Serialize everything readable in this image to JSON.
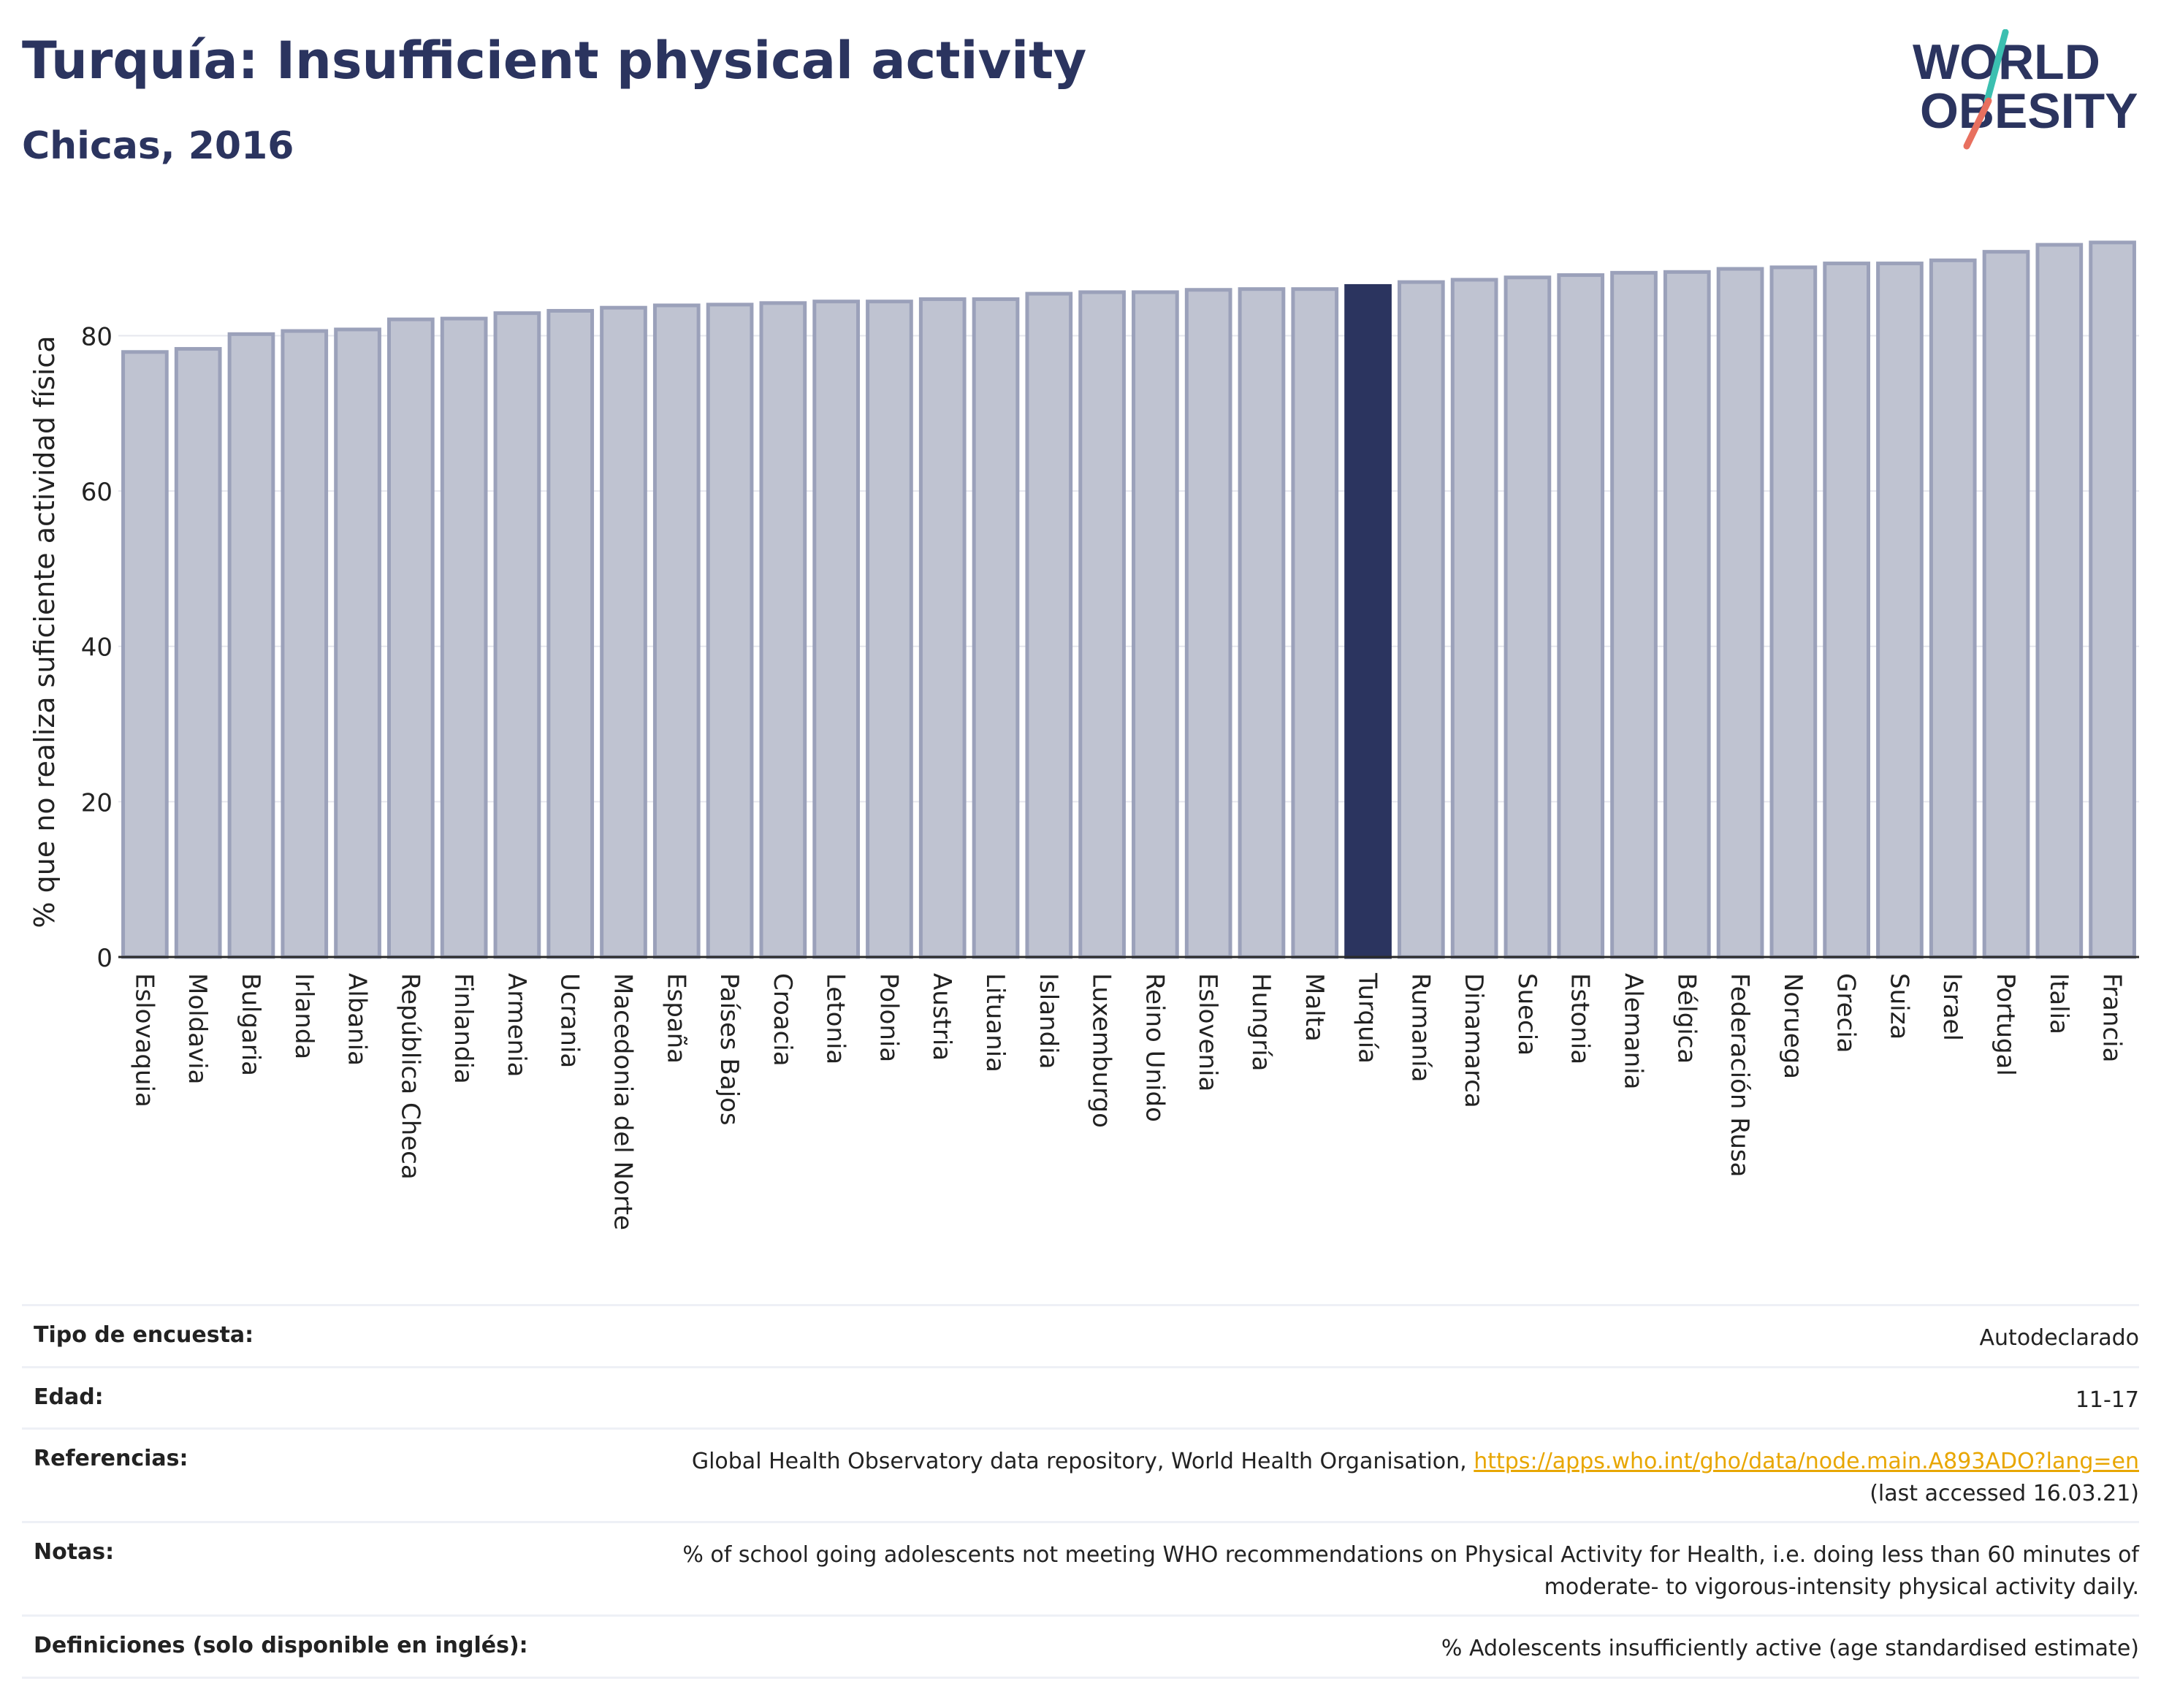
{
  "header": {
    "title": "Turquía: Insufficient physical activity",
    "subtitle": "Chicas, 2016"
  },
  "logo": {
    "line1": "WORLD",
    "line2": "OBESITY"
  },
  "colors": {
    "bar": "#bfc3d1",
    "bar_stroke": "#9ba1ba",
    "highlight": "#2b345f",
    "text": "#222222",
    "grid": "#e6e7ee",
    "logo_teal": "#3bbfb0",
    "logo_coral": "#e8705f",
    "link": "#e8a600"
  },
  "chart_data": {
    "type": "bar",
    "ylabel": "% que no realiza suficiente actividad física",
    "ylim": [
      0,
      95
    ],
    "yticks": [
      0,
      20,
      40,
      60,
      80
    ],
    "grid": true,
    "highlight": "Turquía",
    "categories": [
      "Eslovaquia",
      "Moldavia",
      "Bulgaria",
      "Irlanda",
      "Albania",
      "República Checa",
      "Finlandia",
      "Armenia",
      "Ucrania",
      "Macedonia del Norte",
      "España",
      "Países Bajos",
      "Croacia",
      "Letonia",
      "Polonia",
      "Austria",
      "Lituania",
      "Islandia",
      "Luxemburgo",
      "Reino Unido",
      "Eslovenia",
      "Hungría",
      "Malta",
      "Turquía",
      "Rumanía",
      "Dinamarca",
      "Suecia",
      "Estonia",
      "Alemania",
      "Bélgica",
      "Federación Rusa",
      "Noruega",
      "Grecia",
      "Suiza",
      "Israel",
      "Portugal",
      "Italia",
      "Francia"
    ],
    "values": [
      77.9,
      78.3,
      80.2,
      80.6,
      80.8,
      82.1,
      82.2,
      82.9,
      83.2,
      83.6,
      83.9,
      84.0,
      84.2,
      84.4,
      84.4,
      84.7,
      84.7,
      85.4,
      85.6,
      85.6,
      85.9,
      86.0,
      86.0,
      86.4,
      86.9,
      87.2,
      87.5,
      87.8,
      88.1,
      88.2,
      88.6,
      88.8,
      89.3,
      89.3,
      89.7,
      90.8,
      91.7,
      92.0
    ]
  },
  "meta": [
    {
      "label": "Tipo de encuesta:",
      "value": "Autodeclarado"
    },
    {
      "label": "Edad:",
      "value": "11-17"
    },
    {
      "label": "Referencias:",
      "value": "Global Health Observatory data repository, World Health Organisation,",
      "link": "https://apps.who.int/gho/data/node.main.A893ADO?lang=en",
      "note": "(last accessed 16.03.21)"
    },
    {
      "label": "Notas:",
      "value": "% of school going adolescents not meeting WHO recommendations on Physical Activity for Health, i.e. doing less than 60 minutes of moderate- to vigorous-intensity physical activity daily."
    },
    {
      "label": "Definiciones (solo disponible en inglés):",
      "value": "% Adolescents insufficiently active (age standardised estimate)"
    }
  ]
}
